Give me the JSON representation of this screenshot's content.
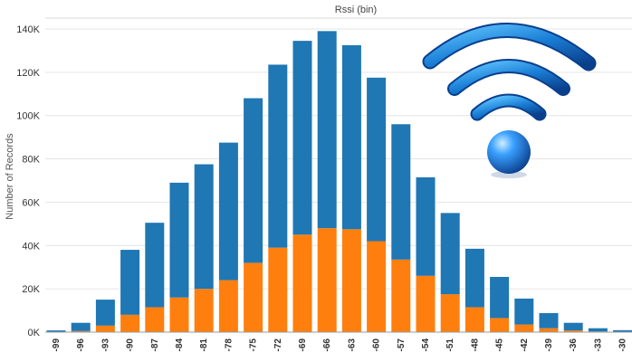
{
  "chart_data": {
    "type": "bar",
    "stacked": true,
    "title": "Rssi (bin)",
    "xlabel": "",
    "ylabel": "Number of Records",
    "ylim": [
      0,
      145000
    ],
    "yticks": [
      "0K",
      "20K",
      "40K",
      "60K",
      "80K",
      "100K",
      "120K",
      "140K"
    ],
    "grid": true,
    "legend": "none",
    "categories": [
      "-99",
      "-96",
      "-93",
      "-90",
      "-87",
      "-84",
      "-81",
      "-78",
      "-75",
      "-72",
      "-69",
      "-66",
      "-63",
      "-60",
      "-57",
      "-54",
      "-51",
      "-48",
      "-45",
      "-42",
      "-39",
      "-36",
      "-33",
      "-30"
    ],
    "series": [
      {
        "color": "#ff7f0e",
        "values": [
          0,
          500,
          3000,
          8000,
          11500,
          16000,
          20000,
          24000,
          32000,
          39000,
          45000,
          48000,
          47500,
          42000,
          33500,
          26000,
          17500,
          11500,
          6500,
          3500,
          1800,
          800,
          300,
          100
        ]
      },
      {
        "color": "#1f77b4",
        "values": [
          800,
          3800,
          12000,
          30000,
          39000,
          53000,
          57500,
          63500,
          76000,
          84500,
          89500,
          91000,
          85000,
          75500,
          62500,
          45500,
          37500,
          27000,
          19000,
          12000,
          7000,
          3500,
          1500,
          800
        ]
      }
    ]
  },
  "colors": {
    "accent_blue": "#1f77b4",
    "accent_orange": "#ff7f0e",
    "grid": "#e6e6e6"
  },
  "icon": "wifi-signal-icon"
}
